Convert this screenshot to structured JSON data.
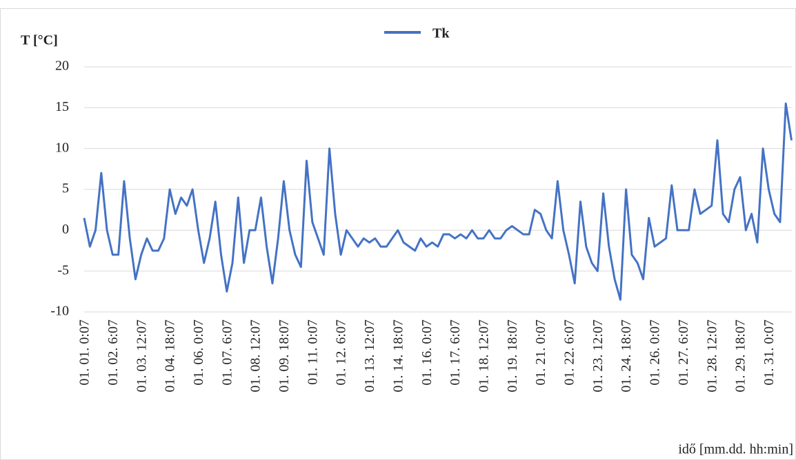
{
  "chart_data": {
    "type": "line",
    "y_label": "T [°C]",
    "x_label": "idő [mm.dd.  hh:min]",
    "ylim": [
      -10,
      20
    ],
    "yticks": [
      -10,
      -5,
      0,
      5,
      10,
      15,
      20
    ],
    "grid": true,
    "legend": "top",
    "categories": [
      "01. 01. 0:07",
      null,
      null,
      null,
      null,
      "01. 02. 6:07",
      null,
      null,
      null,
      null,
      "01. 03. 12:07",
      null,
      null,
      null,
      null,
      "01. 04. 18:07",
      null,
      null,
      null,
      null,
      "01. 06. 0:07",
      null,
      null,
      null,
      null,
      "01. 07. 6:07",
      null,
      null,
      null,
      null,
      "01. 08. 12:07",
      null,
      null,
      null,
      null,
      "01. 09. 18:07",
      null,
      null,
      null,
      null,
      "01. 11. 0:07",
      null,
      null,
      null,
      null,
      "01. 12. 6:07",
      null,
      null,
      null,
      null,
      "01. 13. 12:07",
      null,
      null,
      null,
      null,
      "01. 14. 18:07",
      null,
      null,
      null,
      null,
      "01. 16. 0:07",
      null,
      null,
      null,
      null,
      "01. 17. 6:07",
      null,
      null,
      null,
      null,
      "01. 18. 12:07",
      null,
      null,
      null,
      null,
      "01. 19. 18:07",
      null,
      null,
      null,
      null,
      "01. 21. 0:07",
      null,
      null,
      null,
      null,
      "01. 22. 6:07",
      null,
      null,
      null,
      null,
      "01. 23. 12:07",
      null,
      null,
      null,
      null,
      "01. 24. 18:07",
      null,
      null,
      null,
      null,
      "01. 26. 0:07",
      null,
      null,
      null,
      null,
      "01. 27. 6:07",
      null,
      null,
      null,
      null,
      "01. 28. 12:07",
      null,
      null,
      null,
      null,
      "01. 29. 18:07",
      null,
      null,
      null,
      null,
      "01. 31. 0:07",
      null,
      null,
      null,
      null
    ],
    "series": [
      {
        "name": "Tk",
        "color": "#4472c4",
        "values": [
          1.5,
          -2,
          0,
          7,
          0,
          -3,
          -3,
          6,
          -1,
          -6,
          -3,
          -1,
          -2.5,
          -2.5,
          -1,
          5,
          2,
          4,
          3,
          5,
          0,
          -4,
          -1,
          3.5,
          -3,
          -7.5,
          -4,
          4,
          -4,
          0,
          0,
          4,
          -2,
          -6.5,
          -1,
          6,
          0,
          -3,
          -4.5,
          8.5,
          1,
          -1,
          -3,
          10,
          2,
          -3,
          0,
          -1,
          -2,
          -1,
          -1.5,
          -1,
          -2,
          -2,
          -1,
          0,
          -1.5,
          -2,
          -2.5,
          -1,
          -2,
          -1.5,
          -2,
          -0.5,
          -0.5,
          -1,
          -0.5,
          -1,
          0,
          -1,
          -1,
          0,
          -1,
          -1,
          0,
          0.5,
          0,
          -0.5,
          -0.5,
          2.5,
          2,
          0,
          -1,
          6,
          0,
          -3,
          -6.5,
          3.5,
          -2,
          -4,
          -5,
          4.5,
          -2,
          -6,
          -8.5,
          5,
          -3,
          -4,
          -6,
          1.5,
          -2,
          -1.5,
          -1,
          5.5,
          0,
          0,
          0,
          5,
          2,
          2.5,
          3,
          11,
          2,
          1,
          5,
          6.5,
          0,
          2,
          -1.5,
          10,
          5,
          2,
          1,
          15.5,
          11
        ]
      }
    ]
  }
}
